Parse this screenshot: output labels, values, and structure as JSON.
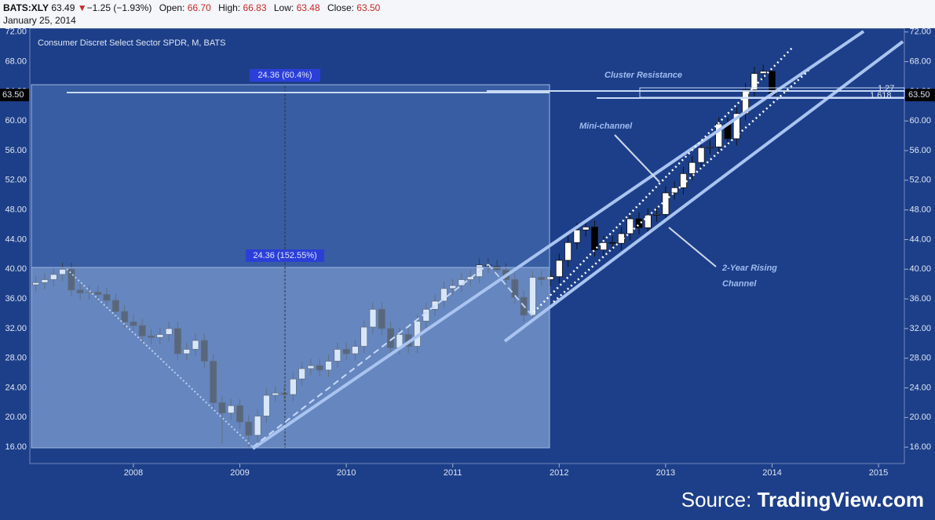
{
  "header": {
    "symbol": "BATS:XLY",
    "price": "63.49",
    "arrow": "▼",
    "change": "−1.25 (−1.93%)",
    "open_label": "Open:",
    "open": "66.70",
    "high_label": "High:",
    "high": "66.83",
    "low_label": "Low:",
    "low": "63.48",
    "close_label": "Close:",
    "close": "63.50",
    "date": "January 25, 2014"
  },
  "chart_data": {
    "type": "candlestick",
    "title": "Consumer Discret Select Sector SPDR, M, BATS",
    "categories": [
      null,
      null,
      null,
      null,
      null,
      null,
      null,
      null,
      null,
      null,
      null,
      "2008",
      null,
      null,
      null,
      null,
      null,
      null,
      null,
      null,
      null,
      null,
      null,
      "2009",
      null,
      null,
      null,
      null,
      null,
      null,
      null,
      null,
      null,
      null,
      null,
      "2010",
      null,
      null,
      null,
      null,
      null,
      null,
      null,
      null,
      null,
      null,
      null,
      "2011",
      null,
      null,
      null,
      null,
      null,
      null,
      null,
      null,
      null,
      null,
      null,
      "2012",
      null,
      null,
      null,
      null,
      null,
      null,
      null,
      null,
      null,
      null,
      null,
      "2013",
      null,
      null,
      null,
      null,
      null,
      null,
      null,
      null,
      null,
      null,
      null,
      "2014",
      null,
      null,
      null,
      null,
      null,
      null,
      null,
      null,
      null,
      null,
      null,
      "2015",
      null
    ],
    "open": [
      37.9,
      38.2,
      38.6,
      39.3,
      40.0,
      37.2,
      36.8,
      36.9,
      36.6,
      35.8,
      34.3,
      32.9,
      32.4,
      31.0,
      30.8,
      31.2,
      32.0,
      28.6,
      29.2,
      30.4,
      27.6,
      22.0,
      20.6,
      21.6,
      19.4,
      17.6,
      20.2,
      23.0,
      23.3,
      23.1,
      25.2,
      26.6,
      27.0,
      26.4,
      27.6,
      29.2,
      28.6,
      29.6,
      32.2,
      34.6,
      32.0,
      29.4,
      31.2,
      29.6,
      33.0,
      34.6,
      35.7,
      37.4,
      37.8,
      38.6,
      39.0,
      40.6,
      40.4,
      39.9,
      38.6,
      36.2,
      33.8,
      38.9,
      38.6,
      39.0,
      41.2,
      43.6,
      45.3,
      45.7,
      42.6,
      43.6,
      43.5,
      44.8,
      46.8,
      45.6,
      47.3,
      47.4,
      50.3,
      51.0,
      52.9,
      54.4,
      56.4,
      56.5,
      59.6,
      57.6,
      61.0,
      64.2,
      66.4,
      66.7,
      null,
      null,
      null,
      null,
      null,
      null,
      null,
      null,
      null,
      null,
      null,
      null,
      null
    ],
    "high": [
      39.1,
      39.5,
      40.2,
      40.9,
      40.9,
      38.1,
      37.8,
      37.8,
      37.5,
      36.7,
      35.2,
      33.8,
      33.3,
      31.9,
      32.1,
      32.9,
      32.9,
      30.1,
      31.3,
      31.3,
      28.5,
      22.9,
      22.5,
      22.5,
      20.3,
      21.1,
      23.9,
      24.2,
      24.2,
      26.1,
      27.5,
      27.9,
      27.9,
      28.5,
      30.1,
      30.1,
      30.5,
      33.1,
      35.5,
      35.5,
      32.9,
      32.1,
      32.1,
      33.9,
      35.5,
      36.6,
      38.3,
      38.7,
      39.5,
      39.9,
      41.5,
      41.5,
      41.3,
      40.8,
      39.5,
      37.1,
      39.8,
      39.8,
      39.9,
      42.1,
      44.5,
      46.2,
      46.6,
      46.6,
      44.5,
      44.5,
      45.7,
      47.7,
      47.7,
      48.2,
      48.3,
      51.2,
      51.9,
      53.8,
      55.3,
      57.3,
      57.4,
      60.5,
      60.5,
      61.9,
      65.1,
      67.3,
      67.6,
      66.83,
      null,
      null,
      null,
      null,
      null,
      null,
      null,
      null,
      null,
      null,
      null,
      null,
      null
    ],
    "low": [
      37.0,
      37.3,
      37.7,
      38.4,
      36.3,
      35.9,
      35.9,
      35.7,
      34.9,
      33.4,
      32.0,
      31.5,
      30.1,
      29.9,
      29.9,
      30.3,
      27.7,
      27.7,
      28.3,
      26.7,
      21.1,
      16.5,
      19.7,
      18.5,
      16.0,
      16.7,
      19.3,
      22.1,
      22.2,
      22.2,
      24.3,
      25.7,
      25.5,
      25.5,
      26.7,
      27.7,
      27.7,
      28.7,
      31.3,
      31.1,
      28.5,
      28.5,
      28.7,
      28.7,
      32.1,
      33.7,
      34.8,
      36.5,
      36.9,
      37.7,
      38.1,
      39.5,
      39.0,
      37.7,
      35.3,
      32.9,
      32.9,
      37.7,
      37.7,
      38.1,
      40.3,
      42.7,
      44.4,
      41.7,
      41.7,
      42.6,
      42.6,
      43.9,
      44.7,
      44.7,
      46.4,
      46.5,
      49.4,
      50.1,
      52.0,
      53.5,
      55.5,
      55.6,
      56.7,
      56.7,
      60.1,
      63.3,
      65.5,
      63.48,
      null,
      null,
      null,
      null,
      null,
      null,
      null,
      null,
      null,
      null,
      null,
      null,
      null
    ],
    "close": [
      38.2,
      38.6,
      39.3,
      40.0,
      37.2,
      36.8,
      36.9,
      36.6,
      35.8,
      34.3,
      32.9,
      32.4,
      31.0,
      30.8,
      31.2,
      32.0,
      28.6,
      29.2,
      30.4,
      27.6,
      22.0,
      20.6,
      21.6,
      19.4,
      17.6,
      20.2,
      23.0,
      23.3,
      23.1,
      25.2,
      26.6,
      27.0,
      26.4,
      27.6,
      29.2,
      28.6,
      29.6,
      32.2,
      34.6,
      32.0,
      29.4,
      31.2,
      29.6,
      33.0,
      34.6,
      35.7,
      37.4,
      37.8,
      38.6,
      39.0,
      40.6,
      40.4,
      39.9,
      38.6,
      36.2,
      33.8,
      38.9,
      38.6,
      39.0,
      41.2,
      43.6,
      45.3,
      45.7,
      42.6,
      43.6,
      43.5,
      44.8,
      46.8,
      45.6,
      47.3,
      47.4,
      50.3,
      51.0,
      52.9,
      54.4,
      56.4,
      56.5,
      59.6,
      57.6,
      61.0,
      64.2,
      66.4,
      66.7,
      63.5,
      null,
      null,
      null,
      null,
      null,
      null,
      null,
      null,
      null,
      null,
      null,
      null,
      null
    ],
    "up_color": "#ffffff",
    "down_color": "#000000",
    "ylim": [
      13.9,
      72.4
    ],
    "yticks": [
      {
        "value": 16,
        "label": "16.00"
      },
      {
        "value": 20,
        "label": "20.00"
      },
      {
        "value": 24,
        "label": "24.00"
      },
      {
        "value": 28,
        "label": "28.00"
      },
      {
        "value": 32,
        "label": "32.00"
      },
      {
        "value": 36,
        "label": "36.00"
      },
      {
        "value": 40,
        "label": "40.00"
      },
      {
        "value": 44,
        "label": "44.00"
      },
      {
        "value": 48,
        "label": "48.00"
      },
      {
        "value": 52,
        "label": "52.00"
      },
      {
        "value": 56,
        "label": "56.00"
      },
      {
        "value": 60,
        "label": "60.00"
      },
      {
        "value": 64,
        "label": "64.00"
      },
      {
        "value": 68,
        "label": "68.00"
      },
      {
        "value": 72,
        "label": "72.00"
      }
    ],
    "price_label": {
      "value": 63.5,
      "label": "63.50"
    },
    "annotations": {
      "cluster": "Cluster Resistance",
      "mini": "Mini-channel",
      "channel_1": "2-Year Rising",
      "channel_2": "Channel",
      "measure_upper": "24.36 (60.4%)",
      "measure_lower": "24.36 (152.55%)",
      "fib_1": "1.27",
      "fib_2": "1.618"
    }
  },
  "source": {
    "prefix": "Source:",
    "site": "TradingView.com"
  }
}
